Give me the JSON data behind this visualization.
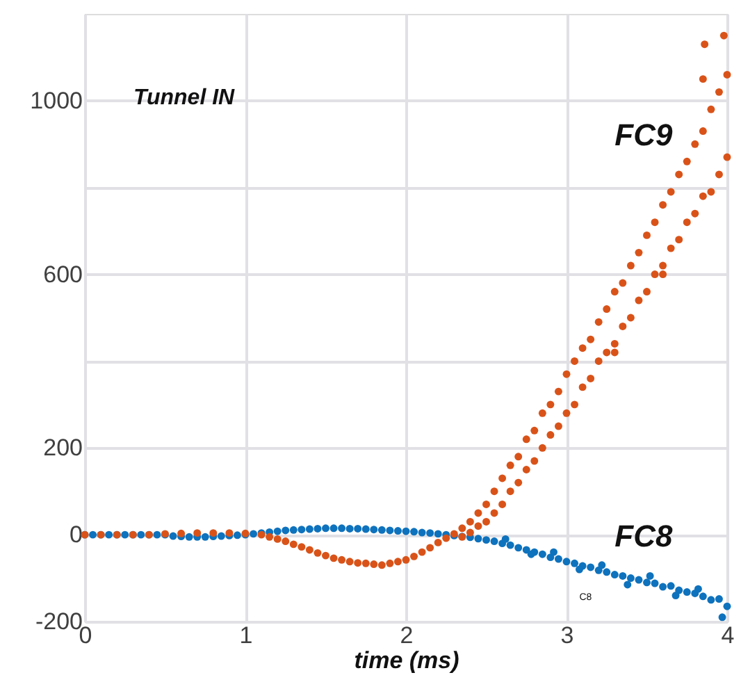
{
  "chart_data": {
    "type": "scatter",
    "xlabel": "time (ms)",
    "xlim": [
      0,
      4
    ],
    "ylim": [
      -200,
      1200
    ],
    "xticks": [
      0,
      1,
      2,
      3,
      4
    ],
    "yticks": [
      -200,
      0,
      200,
      {
        "value": 400,
        "label": null
      },
      600,
      {
        "value": 800,
        "label": null
      },
      1000
    ],
    "grid": true,
    "marker": "circle",
    "annotations": [
      "Tunnel IN",
      "C8"
    ],
    "series": [
      {
        "name": "FC8",
        "color": "#0e72bd",
        "x": [
          0,
          0.05,
          0.1,
          0.15,
          0.2,
          0.25,
          0.3,
          0.35,
          0.4,
          0.45,
          0.5,
          0.55,
          0.6,
          0.65,
          0.7,
          0.75,
          0.8,
          0.85,
          0.9,
          0.95,
          1.0,
          1.05,
          1.1,
          1.15,
          1.2,
          1.25,
          1.3,
          1.35,
          1.4,
          1.45,
          1.5,
          1.55,
          1.6,
          1.65,
          1.7,
          1.75,
          1.8,
          1.85,
          1.9,
          1.95,
          2.0,
          2.05,
          2.1,
          2.15,
          2.2,
          2.25,
          2.3,
          2.35,
          2.4,
          2.45,
          2.5,
          2.55,
          2.6,
          2.65,
          2.7,
          2.75,
          2.8,
          2.85,
          2.9,
          2.95,
          3.0,
          3.05,
          3.1,
          3.15,
          3.2,
          3.25,
          3.3,
          3.35,
          3.4,
          3.45,
          3.5,
          3.55,
          3.6,
          3.65,
          3.7,
          3.75,
          3.8,
          3.85,
          3.9,
          3.95,
          4.0,
          2.62,
          2.78,
          2.92,
          3.08,
          3.22,
          3.38,
          3.52,
          3.68,
          3.82,
          3.97
        ],
        "values": [
          0,
          0,
          0,
          0,
          0,
          0,
          0,
          0,
          0,
          0,
          0,
          -3,
          -4,
          -5,
          -5,
          -5,
          -4,
          -3,
          -2,
          -1,
          0,
          2,
          4,
          6,
          8,
          10,
          11,
          12,
          13,
          14,
          15,
          15,
          15,
          14,
          14,
          13,
          12,
          11,
          10,
          9,
          8,
          7,
          5,
          4,
          2,
          0,
          -2,
          -4,
          -6,
          -9,
          -12,
          -15,
          -20,
          -24,
          -30,
          -35,
          -40,
          -45,
          -52,
          -56,
          -62,
          -66,
          -72,
          -75,
          -82,
          -86,
          -92,
          -95,
          -100,
          -104,
          -110,
          -112,
          -120,
          -118,
          -128,
          -132,
          -135,
          -142,
          -150,
          -148,
          -165,
          -10,
          -45,
          -40,
          -80,
          -70,
          -115,
          -95,
          -140,
          -125,
          -190
        ]
      },
      {
        "name": "FC9",
        "color": "#d95319",
        "x": [
          0,
          0.1,
          0.2,
          0.3,
          0.4,
          0.5,
          0.6,
          0.7,
          0.8,
          0.9,
          1.0,
          1.1,
          1.15,
          1.2,
          1.25,
          1.3,
          1.35,
          1.4,
          1.45,
          1.5,
          1.55,
          1.6,
          1.65,
          1.7,
          1.75,
          1.8,
          1.85,
          1.9,
          1.95,
          2.0,
          2.05,
          2.1,
          2.15,
          2.2,
          2.25,
          2.3,
          2.35,
          2.35,
          2.4,
          2.4,
          2.45,
          2.45,
          2.5,
          2.5,
          2.55,
          2.55,
          2.6,
          2.6,
          2.65,
          2.65,
          2.7,
          2.7,
          2.75,
          2.75,
          2.8,
          2.8,
          2.85,
          2.85,
          2.9,
          2.9,
          2.95,
          2.95,
          3.0,
          3.0,
          3.05,
          3.05,
          3.1,
          3.1,
          3.15,
          3.15,
          3.2,
          3.2,
          3.25,
          3.25,
          3.3,
          3.3,
          3.35,
          3.35,
          3.4,
          3.4,
          3.45,
          3.45,
          3.5,
          3.5,
          3.55,
          3.55,
          3.6,
          3.6,
          3.65,
          3.65,
          3.7,
          3.7,
          3.75,
          3.75,
          3.8,
          3.8,
          3.85,
          3.85,
          3.9,
          3.9,
          3.95,
          3.95,
          4.0,
          4.0,
          3.86,
          3.85,
          3.3,
          3.6,
          3.98
        ],
        "values": [
          0,
          0,
          0,
          0,
          0,
          2,
          3,
          4,
          4,
          4,
          3,
          0,
          -5,
          -10,
          -15,
          -22,
          -28,
          -35,
          -42,
          -48,
          -54,
          -58,
          -62,
          -65,
          -66,
          -68,
          -70,
          -66,
          -62,
          -58,
          -50,
          -40,
          -30,
          -18,
          -8,
          2,
          15,
          -5,
          30,
          5,
          50,
          20,
          70,
          30,
          100,
          50,
          130,
          70,
          160,
          100,
          180,
          120,
          220,
          150,
          240,
          170,
          280,
          200,
          300,
          230,
          330,
          250,
          370,
          280,
          400,
          300,
          430,
          340,
          450,
          360,
          490,
          400,
          520,
          420,
          560,
          440,
          580,
          480,
          620,
          500,
          650,
          540,
          690,
          560,
          720,
          600,
          760,
          620,
          790,
          660,
          830,
          680,
          860,
          720,
          900,
          740,
          930,
          780,
          980,
          790,
          1020,
          830,
          1060,
          870,
          1130,
          1050,
          420,
          600,
          1150
        ]
      }
    ]
  }
}
